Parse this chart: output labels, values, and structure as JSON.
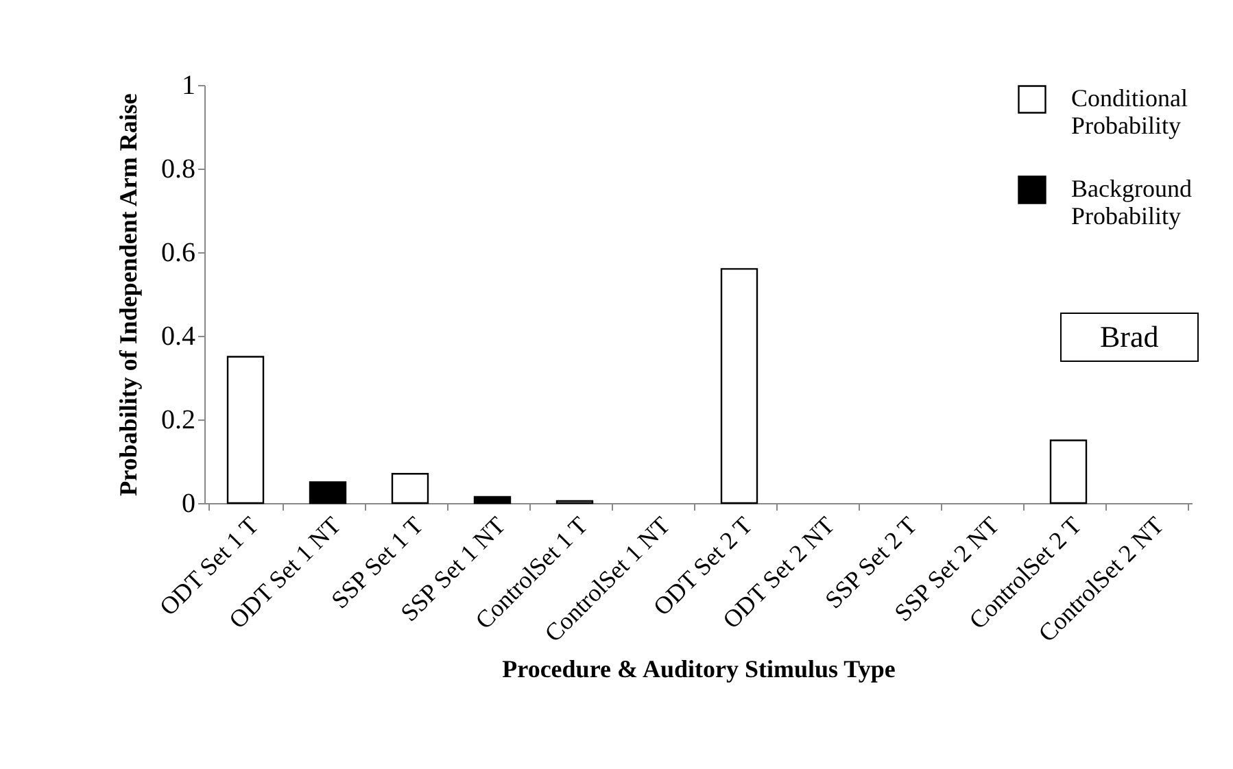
{
  "chart_data": {
    "type": "bar",
    "xlabel": "Procedure & Auditory Stimulus Type",
    "ylabel": "Probability of Independent  Arm Raise",
    "categories": [
      "ODT Set 1 T",
      "ODT Set 1 NT",
      "SSP Set 1 T",
      "SSP Set 1 NT",
      "ControlSet 1 T",
      "ControlSet 1 NT",
      "ODT Set 2 T",
      "ODT Set 2 NT",
      "SSP Set 2 T",
      "SSP Set 2 NT",
      "ControlSet 2 T",
      "ControlSet 2 NT"
    ],
    "series": [
      {
        "name": "Conditional Probability",
        "color": "#ffffff",
        "values": [
          0.35,
          null,
          0.07,
          null,
          0.005,
          null,
          0.56,
          null,
          null,
          null,
          0.15,
          null
        ]
      },
      {
        "name": "Background Probability",
        "color": "#000000",
        "values": [
          null,
          0.05,
          null,
          0.015,
          null,
          null,
          null,
          null,
          null,
          null,
          null,
          null
        ]
      }
    ],
    "ylim": [
      0,
      1
    ],
    "yticks": [
      0,
      0.2,
      0.4,
      0.6,
      0.8,
      1
    ],
    "grid": false,
    "legend": "top right",
    "annotations": [
      "Brad"
    ]
  }
}
